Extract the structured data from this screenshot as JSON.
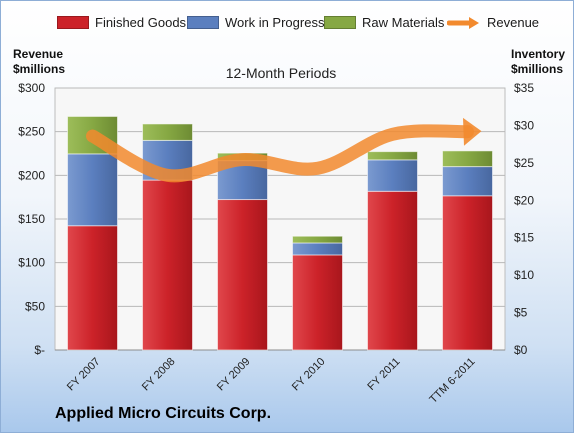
{
  "legend": {
    "finished": "Finished Goods",
    "wip": "Work in Progress",
    "raw": "Raw Materials",
    "revenue": "Revenue"
  },
  "left_axis_title": [
    "Revenue",
    "$millions"
  ],
  "right_axis_title": [
    "Inventory",
    "$millions"
  ],
  "subtitle": "12-Month Periods",
  "company": "Applied Micro Circuits Corp.",
  "colors": {
    "finished": "#cc2229",
    "wip": "#5b7fbf",
    "raw": "#86a843",
    "revenue": "#f28a2e"
  },
  "chart_data": {
    "type": "bar",
    "stacked": true,
    "categories": [
      "FY 2007",
      "FY 2008",
      "FY 2009",
      "FY 2010",
      "FY 2011",
      "TTM 6-2011"
    ],
    "series": [
      {
        "name": "Finished Goods",
        "axis": "right",
        "values": [
          16.6,
          22.7,
          20.1,
          12.7,
          21.2,
          20.6
        ]
      },
      {
        "name": "Work in Progress",
        "axis": "right",
        "values": [
          9.6,
          5.3,
          5.2,
          1.6,
          4.2,
          3.9
        ]
      },
      {
        "name": "Raw Materials",
        "axis": "right",
        "values": [
          5.0,
          2.2,
          1.0,
          0.9,
          1.1,
          2.1
        ]
      },
      {
        "name": "Revenue",
        "type": "line",
        "axis": "left",
        "values": [
          245,
          200,
          218,
          208,
          247,
          250
        ]
      }
    ],
    "left_axis": {
      "ylim": [
        0,
        300
      ],
      "ticks": [
        "$-",
        "$50",
        "$100",
        "$150",
        "$200",
        "$250",
        "$300"
      ]
    },
    "right_axis": {
      "ylim": [
        0,
        35
      ],
      "ticks": [
        "$0",
        "$5",
        "$10",
        "$15",
        "$20",
        "$25",
        "$30",
        "$35"
      ]
    },
    "grid": true,
    "legend_position": "top"
  }
}
